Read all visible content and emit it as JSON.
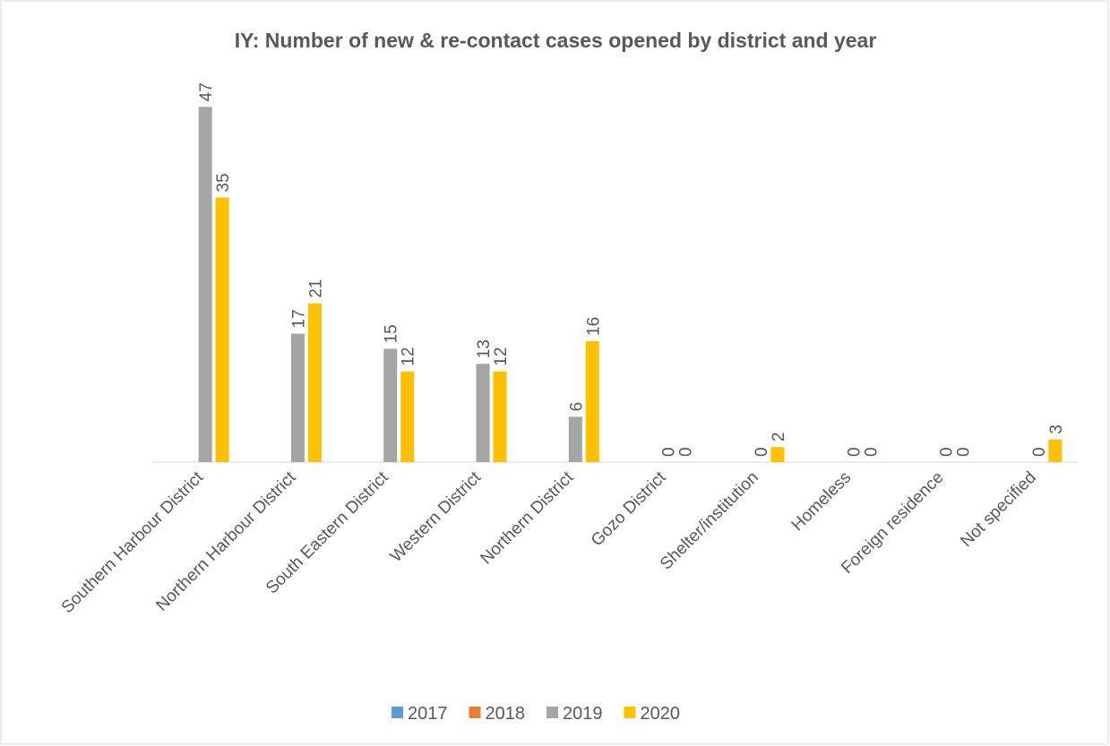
{
  "chart_data": {
    "type": "bar",
    "title": "IY: Number of new & re-contact cases opened by district and year",
    "categories": [
      "Southern Harbour District",
      "Northern Harbour District",
      "South Eastern District",
      "Western District",
      "Northern District",
      "Gozo District",
      "Shelter/institution",
      "Homeless",
      "Foreign residence",
      "Not specified"
    ],
    "series": [
      {
        "name": "2017",
        "color": "#5b9bd5",
        "values": [
          null,
          null,
          null,
          null,
          null,
          null,
          null,
          null,
          null,
          null
        ]
      },
      {
        "name": "2018",
        "color": "#ed7d31",
        "values": [
          null,
          null,
          null,
          null,
          null,
          null,
          null,
          null,
          null,
          null
        ]
      },
      {
        "name": "2019",
        "color": "#a5a5a5",
        "values": [
          47,
          17,
          15,
          13,
          6,
          0,
          0,
          0,
          0,
          0
        ]
      },
      {
        "name": "2020",
        "color": "#ffc000",
        "values": [
          35,
          21,
          12,
          12,
          16,
          0,
          2,
          0,
          0,
          3
        ]
      }
    ],
    "ylim": [
      0,
      50
    ],
    "legend": "bottom"
  }
}
